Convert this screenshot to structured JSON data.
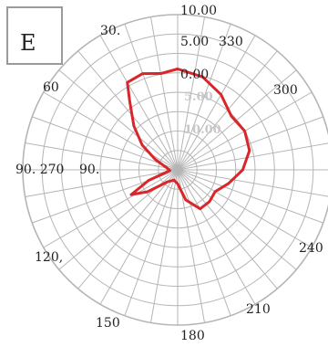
{
  "chart_data": {
    "type": "polar-line",
    "panel_label": "E",
    "radial_tick_labels": [
      "10.00",
      "5.00",
      "0.00",
      "5.00",
      "10.00"
    ],
    "angle_tick_labels": [
      "30.",
      "330",
      "60",
      "300",
      "90. 270",
      "90.",
      "120,",
      "240",
      "150",
      "210",
      "180"
    ],
    "angle_ticks_deg": [
      0,
      10,
      20,
      30,
      40,
      50,
      60,
      70,
      80,
      90,
      100,
      110,
      120,
      130,
      140,
      150,
      160,
      170,
      180,
      190,
      200,
      210,
      220,
      230,
      240,
      250,
      260,
      270,
      280,
      290,
      300,
      310,
      320,
      330,
      340,
      350
    ],
    "rlim": [
      0,
      10
    ],
    "rings": 8,
    "grid": true,
    "series": [
      {
        "color": "#d9262b",
        "points": [
          {
            "theta": 0,
            "r": 6.5
          },
          {
            "theta": 10,
            "r": 6.3
          },
          {
            "theta": 20,
            "r": 6.6
          },
          {
            "theta": 30,
            "r": 6.5
          },
          {
            "theta": 35,
            "r": 5.4
          },
          {
            "theta": 45,
            "r": 4.0
          },
          {
            "theta": 55,
            "r": 2.8
          },
          {
            "theta": 65,
            "r": 1.6
          },
          {
            "theta": 80,
            "r": 0.7
          },
          {
            "theta": 95,
            "r": 0.5
          },
          {
            "theta": 110,
            "r": 2.0
          },
          {
            "theta": 118,
            "r": 3.4
          },
          {
            "theta": 126,
            "r": 2.4
          },
          {
            "theta": 140,
            "r": 1.0
          },
          {
            "theta": 160,
            "r": 0.7
          },
          {
            "theta": 180,
            "r": 0.9
          },
          {
            "theta": 195,
            "r": 2.0
          },
          {
            "theta": 210,
            "r": 2.9
          },
          {
            "theta": 225,
            "r": 2.9
          },
          {
            "theta": 240,
            "r": 2.8
          },
          {
            "theta": 255,
            "r": 3.4
          },
          {
            "theta": 270,
            "r": 4.2
          },
          {
            "theta": 285,
            "r": 4.8
          },
          {
            "theta": 300,
            "r": 5.0
          },
          {
            "theta": 315,
            "r": 4.9
          },
          {
            "theta": 330,
            "r": 5.6
          },
          {
            "theta": 345,
            "r": 6.2
          }
        ]
      }
    ]
  }
}
